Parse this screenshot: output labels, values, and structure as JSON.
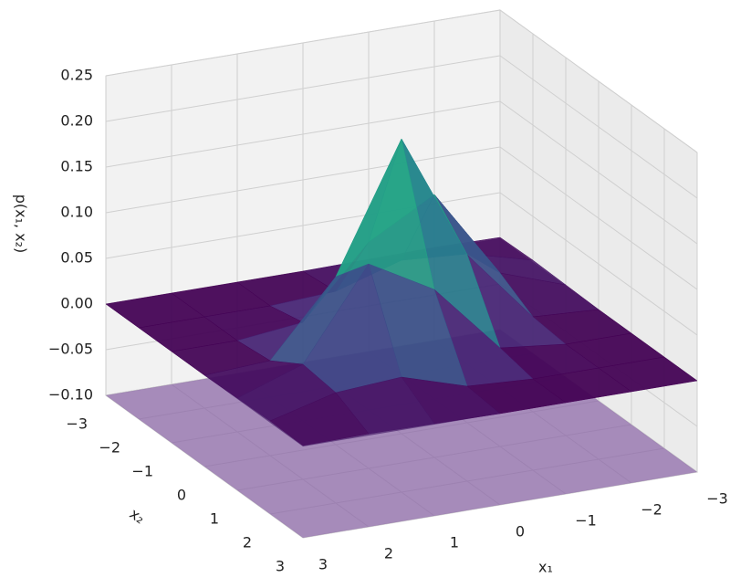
{
  "chart_data": {
    "type": "surface3d",
    "zlabel": "p(x₁, x₂)",
    "xlabel": "x₁",
    "ylabel": "x₂",
    "colormap": "viridis",
    "x": [
      -3,
      -2,
      -1,
      0,
      1,
      2,
      3
    ],
    "y": [
      -3,
      -2,
      -1,
      0,
      1,
      2,
      3
    ],
    "z": [
      [
        0.001,
        0.002,
        0.001,
        0,
        0,
        0,
        0
      ],
      [
        0.002,
        0.021,
        0.026,
        0.004,
        0,
        0,
        0
      ],
      [
        0.001,
        0.026,
        0.124,
        0.084,
        0.008,
        0,
        0
      ],
      [
        0,
        0.004,
        0.084,
        0.223,
        0.084,
        0.004,
        0
      ],
      [
        0,
        0,
        0.008,
        0.084,
        0.124,
        0.026,
        0.001
      ],
      [
        0,
        0,
        0,
        0.004,
        0.026,
        0.021,
        0.002
      ],
      [
        0,
        0,
        0,
        0,
        0.001,
        0.002,
        0.001
      ]
    ],
    "planes": [
      {
        "z": -0.1,
        "color": "#7b4f9d"
      },
      {
        "z": 0,
        "color": "#3b0f5e"
      }
    ],
    "xlim": [
      -3,
      3
    ],
    "ylim": [
      -3,
      3
    ],
    "zlim": [
      -0.1,
      0.25
    ],
    "xticks": [
      {
        "value": -3,
        "label": "−3"
      },
      {
        "value": -2,
        "label": "−2"
      },
      {
        "value": -1,
        "label": "−1"
      },
      0,
      1,
      2,
      3
    ],
    "yticks": [
      {
        "value": -3,
        "label": "−3"
      },
      {
        "value": -2,
        "label": "−2"
      },
      {
        "value": -1,
        "label": "−1"
      },
      0,
      1,
      2,
      3
    ],
    "zticks": [
      {
        "value": -0.1,
        "label": "−0.10"
      },
      {
        "value": -0.05,
        "label": "−0.05"
      },
      {
        "value": 0,
        "label": "0.00"
      },
      0.05,
      {
        "value": 0.1,
        "label": "0.10"
      },
      0.15,
      {
        "value": 0.2,
        "label": "0.20"
      },
      0.25
    ],
    "grid": true
  }
}
